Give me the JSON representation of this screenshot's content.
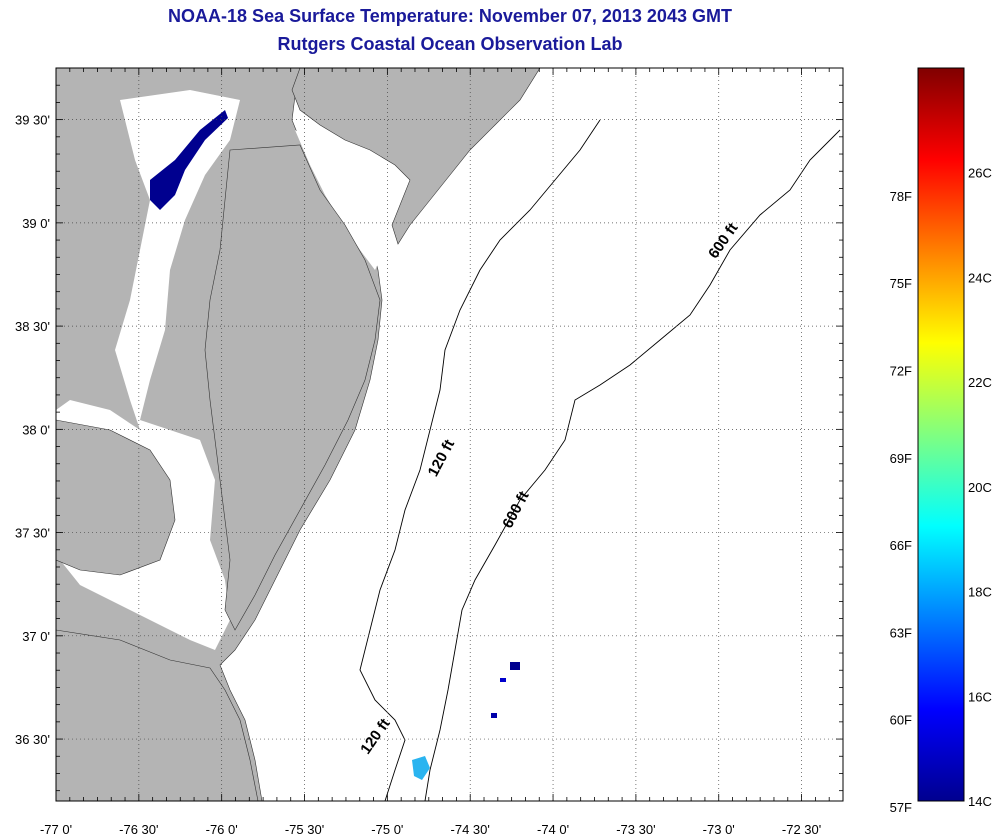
{
  "header": {
    "title": "NOAA-18 Sea Surface Temperature:  November 07, 2013 2043 GMT",
    "subtitle": "Rutgers Coastal Ocean Observation Lab"
  },
  "map": {
    "lon_range": [
      -77.0,
      -72.25
    ],
    "lat_range": [
      36.2,
      39.75
    ],
    "lon_ticks": [
      {
        "value": -77.0,
        "label": "-77 0'"
      },
      {
        "value": -76.5,
        "label": "-76 30'"
      },
      {
        "value": -76.0,
        "label": "-76 0'"
      },
      {
        "value": -75.5,
        "label": "-75 30'"
      },
      {
        "value": -75.0,
        "label": "-75 0'"
      },
      {
        "value": -74.5,
        "label": "-74 30'"
      },
      {
        "value": -74.0,
        "label": "-74 0'"
      },
      {
        "value": -73.5,
        "label": "-73 30'"
      },
      {
        "value": -73.0,
        "label": "-73 0'"
      },
      {
        "value": -72.5,
        "label": "-72 30'"
      }
    ],
    "lat_ticks": [
      {
        "value": 39.5,
        "label": "39 30'"
      },
      {
        "value": 39.0,
        "label": "39 0'"
      },
      {
        "value": 38.5,
        "label": "38 30'"
      },
      {
        "value": 38.0,
        "label": "38 0'"
      },
      {
        "value": 37.5,
        "label": "37 30'"
      },
      {
        "value": 37.0,
        "label": "37 0'"
      },
      {
        "value": 36.5,
        "label": "36 30'"
      }
    ],
    "contour_labels": [
      {
        "text": "120 ft",
        "lon": -74.65,
        "lat": 37.85,
        "angle": -62
      },
      {
        "text": "600 ft",
        "lon": -74.2,
        "lat": 37.6,
        "angle": -62
      },
      {
        "text": "600 ft",
        "lon": -72.95,
        "lat": 38.9,
        "angle": -55
      },
      {
        "text": "120 ft",
        "lon": -75.05,
        "lat": 36.5,
        "angle": -55
      }
    ],
    "colors": {
      "land": "#b4b4b4",
      "water": "#ffffff",
      "grid": "#444444",
      "contour": "#000000"
    }
  },
  "colorbar": {
    "f_labels": [
      {
        "value": 78,
        "label": "78F"
      },
      {
        "value": 75,
        "label": "75F"
      },
      {
        "value": 72,
        "label": "72F"
      },
      {
        "value": 69,
        "label": "69F"
      },
      {
        "value": 66,
        "label": "66F"
      },
      {
        "value": 63,
        "label": "63F"
      },
      {
        "value": 60,
        "label": "60F"
      },
      {
        "value": 57,
        "label": "57F"
      }
    ],
    "c_labels": [
      {
        "value": 26,
        "label": "26C"
      },
      {
        "value": 24,
        "label": "24C"
      },
      {
        "value": 22,
        "label": "22C"
      },
      {
        "value": 20,
        "label": "20C"
      },
      {
        "value": 18,
        "label": "18C"
      },
      {
        "value": 16,
        "label": "16C"
      },
      {
        "value": 14,
        "label": "14C"
      }
    ],
    "c_range": [
      14,
      28
    ],
    "colormap": [
      "#00008f",
      "#0000ff",
      "#0080ff",
      "#00ffff",
      "#80ff80",
      "#ffff00",
      "#ff8000",
      "#ff0000",
      "#800000"
    ]
  }
}
